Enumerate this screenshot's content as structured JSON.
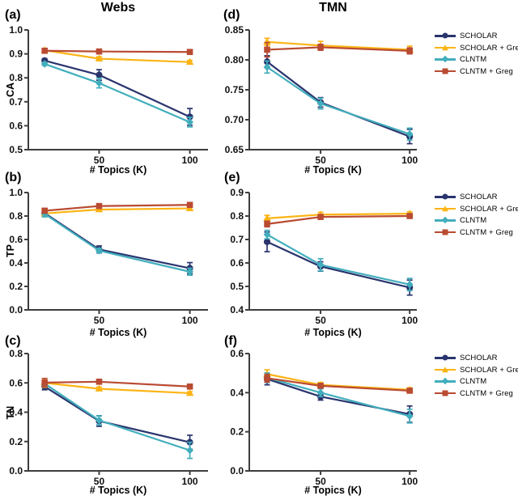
{
  "figure": {
    "column_titles": [
      "Webs",
      "TMN"
    ],
    "x_axis_label": "# Topics (K)",
    "background": "#ffffff",
    "axis_color": "#3d3d3d"
  },
  "legend": {
    "position": "right-of-each-row",
    "items": [
      {
        "label": "SCHOLAR",
        "color": "#2a356e",
        "marker": "circle"
      },
      {
        "label": "SCHOLAR + Greg",
        "color": "#fcb415",
        "marker": "triangle"
      },
      {
        "label": "CLNTM",
        "color": "#42aebd",
        "marker": "diamond"
      },
      {
        "label": "CLNTM + Greg",
        "color": "#b94b32",
        "marker": "square"
      }
    ]
  },
  "chart_data": [
    {
      "type": "line",
      "panel_label": "(a)",
      "title": "Webs",
      "ylabel": "CA",
      "xlabel": "# Topics (K)",
      "x": [
        20,
        50,
        100
      ],
      "xticks": [
        50,
        100
      ],
      "xlim": [
        11,
        110
      ],
      "ylim": [
        0.5,
        1.0
      ],
      "yticks": [
        "0.5",
        "0.6",
        "0.7",
        "0.8",
        "0.9",
        "1.0"
      ],
      "grid": false,
      "series": [
        {
          "name": "SCHOLAR",
          "values": [
            0.872,
            0.812,
            0.637
          ],
          "errors": [
            0.008,
            0.022,
            0.035
          ]
        },
        {
          "name": "SCHOLAR + Greg",
          "values": [
            0.915,
            0.88,
            0.866
          ],
          "errors": [
            0.008,
            0.008,
            0.007
          ]
        },
        {
          "name": "CLNTM",
          "values": [
            0.858,
            0.778,
            0.615
          ],
          "errors": [
            0.006,
            0.02,
            0.02
          ]
        },
        {
          "name": "CLNTM + Greg",
          "values": [
            0.913,
            0.91,
            0.908
          ],
          "errors": [
            0.006,
            0.005,
            0.005
          ]
        }
      ]
    },
    {
      "type": "line",
      "panel_label": "(b)",
      "title": "",
      "ylabel": "TP",
      "xlabel": "# Topics (K)",
      "x": [
        20,
        50,
        100
      ],
      "xticks": [
        50,
        100
      ],
      "xlim": [
        11,
        110
      ],
      "ylim": [
        0.0,
        1.0
      ],
      "yticks": [
        "0.0",
        "0.2",
        "0.4",
        "0.6",
        "0.8",
        "1.0"
      ],
      "grid": false,
      "series": [
        {
          "name": "SCHOLAR",
          "values": [
            0.825,
            0.515,
            0.355
          ],
          "errors": [
            0.03,
            0.03,
            0.048
          ]
        },
        {
          "name": "SCHOLAR + Greg",
          "values": [
            0.822,
            0.855,
            0.865
          ],
          "errors": [
            0.028,
            0.014,
            0.012
          ]
        },
        {
          "name": "CLNTM",
          "values": [
            0.818,
            0.505,
            0.325
          ],
          "errors": [
            0.025,
            0.018,
            0.03
          ]
        },
        {
          "name": "CLNTM + Greg",
          "values": [
            0.845,
            0.885,
            0.895
          ],
          "errors": [
            0.02,
            0.012,
            0.01
          ]
        }
      ]
    },
    {
      "type": "line",
      "panel_label": "(c)",
      "title": "",
      "ylabel": "TN",
      "xlabel": "# Topics (K)",
      "x": [
        20,
        50,
        100
      ],
      "xticks": [
        50,
        100
      ],
      "xlim": [
        11,
        110
      ],
      "ylim": [
        0.0,
        0.8
      ],
      "yticks": [
        "0.0",
        "0.2",
        "0.4",
        "0.6",
        "0.8"
      ],
      "grid": false,
      "series": [
        {
          "name": "SCHOLAR",
          "values": [
            0.575,
            0.34,
            0.195
          ],
          "errors": [
            0.022,
            0.036,
            0.048
          ]
        },
        {
          "name": "SCHOLAR + Greg",
          "values": [
            0.6,
            0.56,
            0.53
          ],
          "errors": [
            0.03,
            0.012,
            0.01
          ]
        },
        {
          "name": "CLNTM",
          "values": [
            0.595,
            0.345,
            0.14
          ],
          "errors": [
            0.02,
            0.03,
            0.055
          ]
        },
        {
          "name": "CLNTM + Greg",
          "values": [
            0.602,
            0.608,
            0.575
          ],
          "errors": [
            0.028,
            0.01,
            0.01
          ]
        }
      ]
    },
    {
      "type": "line",
      "panel_label": "(d)",
      "title": "TMN",
      "ylabel": "",
      "xlabel": "# Topics (K)",
      "x": [
        20,
        50,
        100
      ],
      "xticks": [
        50,
        100
      ],
      "xlim": [
        10,
        104
      ],
      "ylim": [
        0.65,
        0.85
      ],
      "yticks": [
        "0.65",
        "0.70",
        "0.75",
        "0.80",
        "0.85"
      ],
      "grid": false,
      "series": [
        {
          "name": "SCHOLAR",
          "values": [
            0.797,
            0.729,
            0.672
          ],
          "errors": [
            0.01,
            0.008,
            0.012
          ]
        },
        {
          "name": "SCHOLAR + Greg",
          "values": [
            0.83,
            0.824,
            0.817
          ],
          "errors": [
            0.006,
            0.007,
            0.006
          ]
        },
        {
          "name": "CLNTM",
          "values": [
            0.788,
            0.727,
            0.676
          ],
          "errors": [
            0.01,
            0.009,
            0.01
          ]
        },
        {
          "name": "CLNTM + Greg",
          "values": [
            0.817,
            0.821,
            0.815
          ],
          "errors": [
            0.012,
            0.005,
            0.005
          ]
        }
      ]
    },
    {
      "type": "line",
      "panel_label": "(e)",
      "title": "",
      "ylabel": "",
      "xlabel": "# Topics (K)",
      "x": [
        20,
        50,
        100
      ],
      "xticks": [
        50,
        100
      ],
      "xlim": [
        10,
        104
      ],
      "ylim": [
        0.4,
        0.9
      ],
      "yticks": [
        "0.4",
        "0.5",
        "0.6",
        "0.7",
        "0.8",
        "0.9"
      ],
      "grid": false,
      "series": [
        {
          "name": "SCHOLAR",
          "values": [
            0.69,
            0.585,
            0.495
          ],
          "errors": [
            0.042,
            0.02,
            0.032
          ]
        },
        {
          "name": "SCHOLAR + Greg",
          "values": [
            0.79,
            0.806,
            0.81
          ],
          "errors": [
            0.013,
            0.01,
            0.008
          ]
        },
        {
          "name": "CLNTM",
          "values": [
            0.721,
            0.592,
            0.508
          ],
          "errors": [
            0.018,
            0.026,
            0.026
          ]
        },
        {
          "name": "CLNTM + Greg",
          "values": [
            0.766,
            0.796,
            0.8
          ],
          "errors": [
            0.012,
            0.008,
            0.006
          ]
        }
      ]
    },
    {
      "type": "line",
      "panel_label": "(f)",
      "title": "",
      "ylabel": "",
      "xlabel": "# Topics (K)",
      "x": [
        20,
        50,
        100
      ],
      "xticks": [
        50,
        100
      ],
      "xlim": [
        10,
        104
      ],
      "ylim": [
        0.0,
        0.6
      ],
      "yticks": [
        "0.0",
        "0.2",
        "0.4",
        "0.6"
      ],
      "grid": false,
      "series": [
        {
          "name": "SCHOLAR",
          "values": [
            0.47,
            0.38,
            0.29
          ],
          "errors": [
            0.03,
            0.018,
            0.042
          ]
        },
        {
          "name": "SCHOLAR + Greg",
          "values": [
            0.495,
            0.44,
            0.415
          ],
          "errors": [
            0.022,
            0.012,
            0.01
          ]
        },
        {
          "name": "CLNTM",
          "values": [
            0.476,
            0.4,
            0.28
          ],
          "errors": [
            0.024,
            0.02,
            0.035
          ]
        },
        {
          "name": "CLNTM + Greg",
          "values": [
            0.474,
            0.435,
            0.41
          ],
          "errors": [
            0.02,
            0.01,
            0.008
          ]
        }
      ]
    }
  ]
}
